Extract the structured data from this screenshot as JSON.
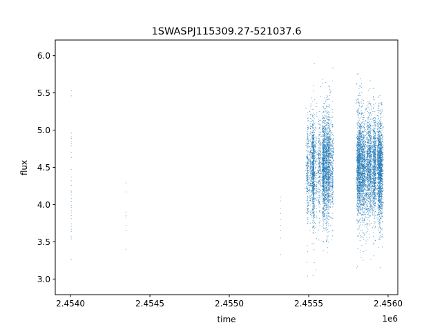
{
  "chart_data": {
    "type": "scatter",
    "title": "1SWASPJ115309.27-521037.6",
    "xlabel": "time",
    "ylabel": "flux",
    "x_offset_label": "1e6",
    "xlim": [
      2453904,
      2456061
    ],
    "ylim": [
      2.79,
      6.21
    ],
    "grid": false,
    "marker_color": "#1f77b4",
    "x_ticks": [
      2454000,
      2454500,
      2455000,
      2455500,
      2456000
    ],
    "x_tick_labels": [
      "2.4540",
      "2.4545",
      "2.4550",
      "2.4555",
      "2.4560"
    ],
    "y_ticks": [
      3.0,
      3.5,
      4.0,
      4.5,
      5.0,
      5.5,
      6.0
    ],
    "y_tick_labels": [
      "3.0",
      "3.5",
      "4.0",
      "4.5",
      "5.0",
      "5.5",
      "6.0"
    ],
    "sparse_series": [
      {
        "x": 2454005,
        "y": [
          5.53,
          5.46,
          4.96,
          4.91,
          4.89,
          4.85,
          4.82,
          4.79,
          4.7,
          4.63,
          4.47,
          4.37,
          4.32,
          4.26,
          4.18,
          4.16,
          4.13,
          4.08,
          4.04,
          3.99,
          3.96,
          3.92,
          3.89,
          3.85,
          3.81,
          3.74,
          3.71,
          3.67,
          3.64,
          3.57,
          3.54,
          3.26
        ]
      },
      {
        "x": 2454349,
        "y": [
          4.29,
          4.17,
          3.9,
          3.85,
          3.83,
          3.72,
          3.65,
          3.4
        ]
      },
      {
        "x": 2455322,
        "y": [
          4.1,
          4.05,
          3.95,
          3.88,
          3.8,
          3.72,
          3.65,
          3.55,
          3.33
        ]
      }
    ],
    "dense_clusters": [
      {
        "x_range": [
          2455483,
          2455652
        ],
        "y_mean": 4.5,
        "y_std": 0.33,
        "y_min": 2.95,
        "y_max": 6.07,
        "approx_points": 3500
      },
      {
        "x_range": [
          2455804,
          2455965
        ],
        "y_mean": 4.5,
        "y_std": 0.33,
        "y_min": 2.98,
        "y_max": 5.96,
        "approx_points": 5000
      }
    ]
  }
}
